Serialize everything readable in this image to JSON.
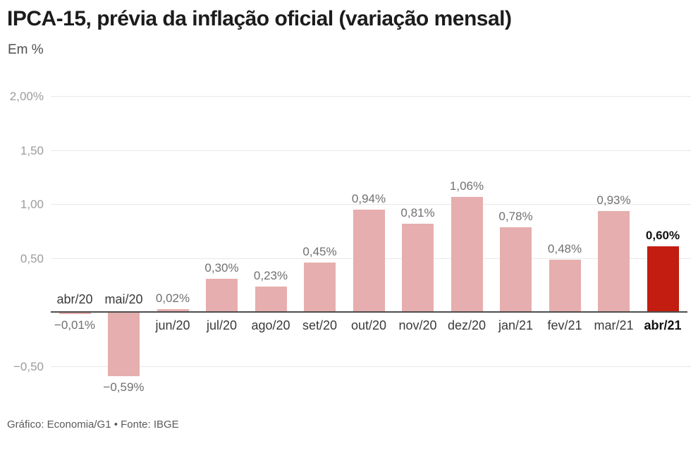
{
  "header": {
    "title": "IPCA-15, prévia da inflação oficial (variação mensal)",
    "subtitle": "Em %"
  },
  "footer": {
    "credit": "Gráfico: Economia/G1 • Fonte: IBGE"
  },
  "colors": {
    "bar": "#e6aeae",
    "bar_highlight": "#c21d10",
    "grid": "#e8e8e8",
    "axis": "#4d4d4d",
    "value_label": "#707070",
    "value_label_highlight": "#111111",
    "tick_label": "#9c9c9c",
    "x_label": "#3a3a3a"
  },
  "chart_data": {
    "type": "bar",
    "title": "IPCA-15, prévia da inflação oficial (variação mensal)",
    "unit": "%",
    "categories": [
      "abr/20",
      "mai/20",
      "jun/20",
      "jul/20",
      "ago/20",
      "set/20",
      "out/20",
      "nov/20",
      "dez/20",
      "jan/21",
      "fev/21",
      "mar/21",
      "abr/21"
    ],
    "values": [
      -0.01,
      -0.59,
      0.02,
      0.3,
      0.23,
      0.45,
      0.94,
      0.81,
      1.06,
      0.78,
      0.48,
      0.93,
      0.6
    ],
    "value_labels": [
      "−0,01%",
      "−0,59%",
      "0,02%",
      "0,30%",
      "0,23%",
      "0,45%",
      "0,94%",
      "0,81%",
      "1,06%",
      "0,78%",
      "0,48%",
      "0,93%",
      "0,60%"
    ],
    "y_ticks": [
      {
        "value": 2.0,
        "label": "2,00%"
      },
      {
        "value": 1.5,
        "label": "1,50"
      },
      {
        "value": 1.0,
        "label": "1,00"
      },
      {
        "value": 0.5,
        "label": "0,50"
      },
      {
        "value": -0.5,
        "label": "−0,50"
      }
    ],
    "ylim": [
      -0.75,
      2.1
    ],
    "xlabel": "",
    "ylabel": "Em %",
    "grid": true,
    "legend": "none",
    "highlight_index": 12
  }
}
